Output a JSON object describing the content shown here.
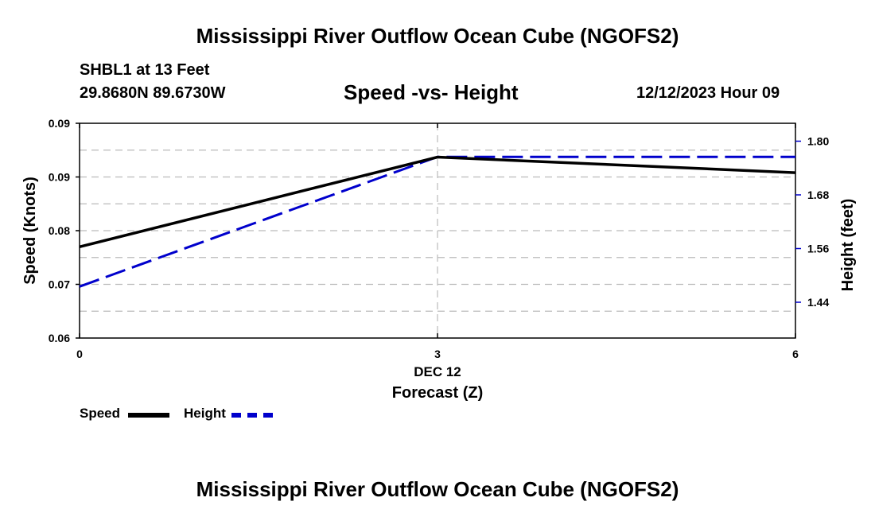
{
  "header": {
    "title": "Mississippi River Outflow Ocean Cube (NGOFS2)",
    "station": "SHBL1 at 13 Feet",
    "coords": "29.8680N  89.6730W",
    "datetime": "12/12/2023 Hour 09"
  },
  "footer": {
    "title": "Mississippi River Outflow Ocean Cube (NGOFS2)"
  },
  "colors": {
    "speed": "#000000",
    "height": "#0000cc",
    "grid": "#bbbbbb"
  },
  "chart_data": {
    "type": "line",
    "title": "Speed -vs- Height",
    "xlabel": "Forecast (Z)",
    "date_label": "DEC 12",
    "ylabel_left": "Speed (Knots)",
    "ylabel_right": "Height (feet)",
    "x": [
      0,
      3,
      6
    ],
    "x_ticks": [
      "0",
      "3",
      "6"
    ],
    "xlim": [
      0,
      6
    ],
    "ylim_left": [
      0.06,
      0.1
    ],
    "ylim_right": [
      1.36,
      1.84
    ],
    "yticks_left": [
      "0.09",
      "0.09",
      "0.08",
      "0.07",
      "0.06"
    ],
    "yticks_right": [
      "1.80",
      "1.68",
      "1.56",
      "1.44"
    ],
    "yticks_right_values": [
      1.8,
      1.68,
      1.56,
      1.44
    ],
    "series": [
      {
        "name": "Speed",
        "axis": "left",
        "style": "solid",
        "values": [
          0.077,
          0.0937,
          0.0908
        ]
      },
      {
        "name": "Height",
        "axis": "right",
        "style": "dashed",
        "values": [
          1.475,
          1.765,
          1.765
        ]
      }
    ],
    "legend": [
      "Speed",
      "Height"
    ]
  }
}
